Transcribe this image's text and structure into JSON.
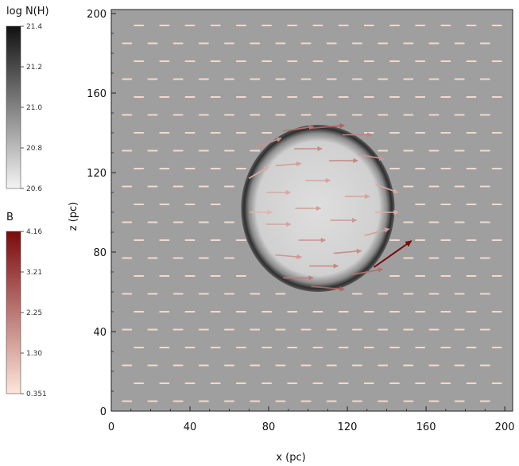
{
  "chart_data": {
    "type": "heatmap",
    "title": "",
    "xlabel": "x (pc)",
    "ylabel": "z (pc)",
    "xlim": [
      0,
      204
    ],
    "ylim": [
      0,
      202
    ],
    "x_ticks": [
      0,
      40,
      80,
      120,
      160,
      200
    ],
    "y_ticks": [
      0,
      40,
      80,
      120,
      160,
      200
    ],
    "colorbars": [
      {
        "name": "log N(H)",
        "cmap": "gray_r",
        "colors": [
          "#f4f4f4",
          "#111111"
        ],
        "range": [
          20.6,
          21.4
        ],
        "ticks": [
          "21.4",
          "21.2",
          "21.0",
          "20.8",
          "20.6"
        ]
      },
      {
        "name": "B",
        "cmap": "reds",
        "colors": [
          "#fde6dc",
          "#7a0a0c"
        ],
        "range": [
          0.351,
          4.16
        ],
        "ticks": [
          "4.16",
          "3.21",
          "2.25",
          "1.30",
          "0.351"
        ]
      }
    ],
    "background_logNH": 20.9,
    "shell": {
      "center": [
        105,
        102
      ],
      "radius": [
        39,
        42
      ],
      "shell_logNH": 21.3,
      "interior_logNH": 20.7
    },
    "background_B": 0.6,
    "background_B_angle_deg": 0,
    "shell_vectors": [
      {
        "x": 110,
        "z": 143,
        "angle": 5,
        "B": 2.6
      },
      {
        "x": 95,
        "z": 142,
        "angle": 8,
        "B": 2.3
      },
      {
        "x": 125,
        "z": 139,
        "angle": 0,
        "B": 2.1
      },
      {
        "x": 80,
        "z": 135,
        "angle": 20,
        "B": 1.8
      },
      {
        "x": 132,
        "z": 128,
        "angle": -10,
        "B": 1.7
      },
      {
        "x": 100,
        "z": 132,
        "angle": 0,
        "B": 1.9
      },
      {
        "x": 118,
        "z": 126,
        "angle": 0,
        "B": 2.0
      },
      {
        "x": 90,
        "z": 124,
        "angle": 5,
        "B": 1.6
      },
      {
        "x": 75,
        "z": 120,
        "angle": 30,
        "B": 1.3
      },
      {
        "x": 140,
        "z": 112,
        "angle": -20,
        "B": 1.4
      },
      {
        "x": 105,
        "z": 116,
        "angle": 0,
        "B": 1.5
      },
      {
        "x": 85,
        "z": 110,
        "angle": 0,
        "B": 1.4
      },
      {
        "x": 125,
        "z": 108,
        "angle": 0,
        "B": 1.5
      },
      {
        "x": 100,
        "z": 102,
        "angle": 0,
        "B": 1.6
      },
      {
        "x": 118,
        "z": 96,
        "angle": 0,
        "B": 1.7
      },
      {
        "x": 85,
        "z": 94,
        "angle": 0,
        "B": 1.5
      },
      {
        "x": 135,
        "z": 90,
        "angle": 15,
        "B": 1.6
      },
      {
        "x": 102,
        "z": 86,
        "angle": 0,
        "B": 1.8
      },
      {
        "x": 120,
        "z": 80,
        "angle": 5,
        "B": 1.9
      },
      {
        "x": 90,
        "z": 78,
        "angle": -5,
        "B": 1.7
      },
      {
        "x": 108,
        "z": 73,
        "angle": 0,
        "B": 2.0
      },
      {
        "x": 130,
        "z": 70,
        "angle": 10,
        "B": 2.4
      },
      {
        "x": 143,
        "z": 79,
        "angle": 35,
        "B": 4.16
      },
      {
        "x": 110,
        "z": 62,
        "angle": -5,
        "B": 2.6
      },
      {
        "x": 95,
        "z": 67,
        "angle": 0,
        "B": 2.2
      },
      {
        "x": 76,
        "z": 100,
        "angle": 0,
        "B": 1.2
      },
      {
        "x": 140,
        "z": 100,
        "angle": 0,
        "B": 1.3
      }
    ]
  }
}
